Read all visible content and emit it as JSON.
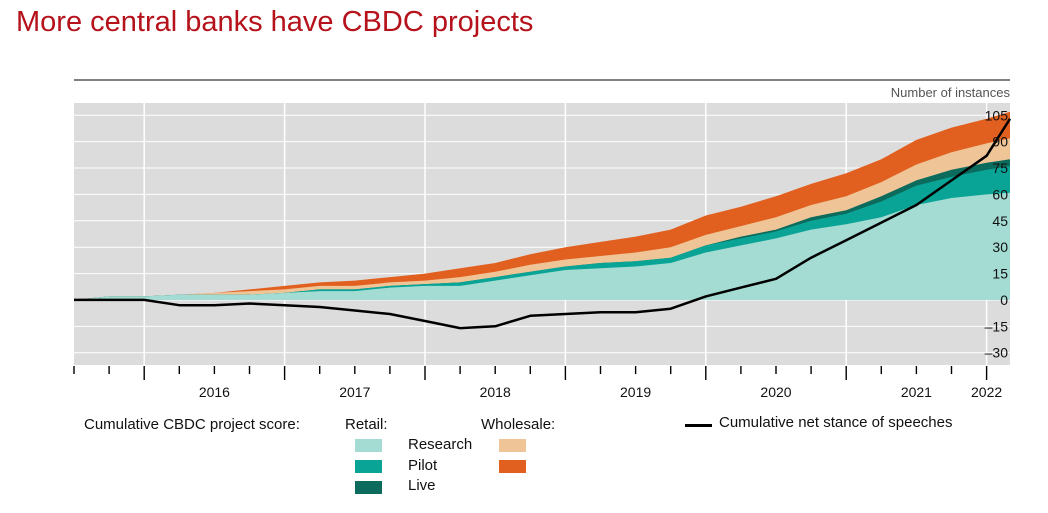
{
  "title": "More central banks have CBDC projects",
  "colors": {
    "title": "#b5121b",
    "plot_bg": "#dcdcdc",
    "retail_research": "#a4dcd4",
    "retail_pilot": "#0aa497",
    "retail_live": "#0b6b5c",
    "wholesale_1": "#efc597",
    "wholesale_2": "#e2601f",
    "speeches": "#000000"
  },
  "legend": {
    "score_label": "Cumulative CBDC project score:",
    "retail_label": "Retail:",
    "wholesale_label": "Wholesale:",
    "research": "Research",
    "pilot": "Pilot",
    "live": "Live",
    "speeches": "Cumulative net stance of speeches"
  },
  "chart_data": {
    "type": "area",
    "title": "More central banks have CBDC projects",
    "ylabel": "Number of instances",
    "ylim": [
      -37,
      112
    ],
    "yticks": [
      105,
      90,
      75,
      60,
      45,
      30,
      15,
      0,
      -15,
      -30
    ],
    "ytick_labels": [
      "105",
      "90",
      "75",
      "60",
      "45",
      "30",
      "15",
      "0",
      "–15",
      "–30"
    ],
    "x_start": "2015-07",
    "x_end": "2022-03",
    "year_labels": [
      "2016",
      "2017",
      "2018",
      "2019",
      "2020",
      "2021",
      "2022"
    ],
    "grid": true,
    "x": [
      "2015-07",
      "2015-10",
      "2016-01",
      "2016-04",
      "2016-07",
      "2016-10",
      "2017-01",
      "2017-04",
      "2017-07",
      "2017-10",
      "2018-01",
      "2018-04",
      "2018-07",
      "2018-10",
      "2019-01",
      "2019-04",
      "2019-07",
      "2019-10",
      "2020-01",
      "2020-04",
      "2020-07",
      "2020-10",
      "2021-01",
      "2021-04",
      "2021-07",
      "2021-10",
      "2022-01",
      "2022-03"
    ],
    "series": [
      {
        "name": "Research",
        "values": [
          0,
          2,
          2,
          3,
          3,
          3,
          4,
          5,
          5,
          7,
          8,
          8,
          11,
          14,
          17,
          18,
          19,
          21,
          27,
          31,
          35,
          40,
          43,
          47,
          54,
          58,
          60,
          61
        ]
      },
      {
        "name": "Pilot",
        "values": [
          0,
          0,
          0,
          0,
          0,
          0,
          0,
          1,
          1,
          1,
          1,
          2,
          2,
          2,
          2,
          3,
          3,
          3,
          4,
          4,
          4,
          5,
          6,
          9,
          11,
          12,
          14,
          15
        ]
      },
      {
        "name": "Live",
        "values": [
          0,
          0,
          0,
          0,
          0,
          0,
          0,
          0,
          0,
          0,
          0,
          0,
          0,
          0,
          0,
          0,
          0,
          0,
          0,
          1,
          1,
          2,
          2,
          3,
          3,
          4,
          4,
          4
        ]
      },
      {
        "name": "",
        "values": [
          0,
          0,
          0,
          0,
          1,
          2,
          2,
          2,
          2,
          2,
          2,
          3,
          3,
          4,
          4,
          4,
          5,
          6,
          6,
          6,
          7,
          7,
          8,
          8,
          9,
          10,
          11,
          12
        ]
      },
      {
        "name": "",
        "values": [
          0,
          0,
          0,
          0,
          0,
          1,
          2,
          2,
          3,
          3,
          4,
          5,
          5,
          6,
          7,
          8,
          9,
          10,
          11,
          11,
          12,
          12,
          13,
          13,
          14,
          14,
          14,
          15
        ]
      },
      {
        "name": "Cumulative net stance of speeches",
        "values": [
          0,
          0,
          0,
          -3,
          -3,
          -2,
          -3,
          -4,
          -6,
          -8,
          -12,
          -16,
          -15,
          -9,
          -8,
          -7,
          -7,
          -5,
          2,
          7,
          12,
          24,
          34,
          44,
          54,
          68,
          82,
          103
        ]
      }
    ]
  }
}
